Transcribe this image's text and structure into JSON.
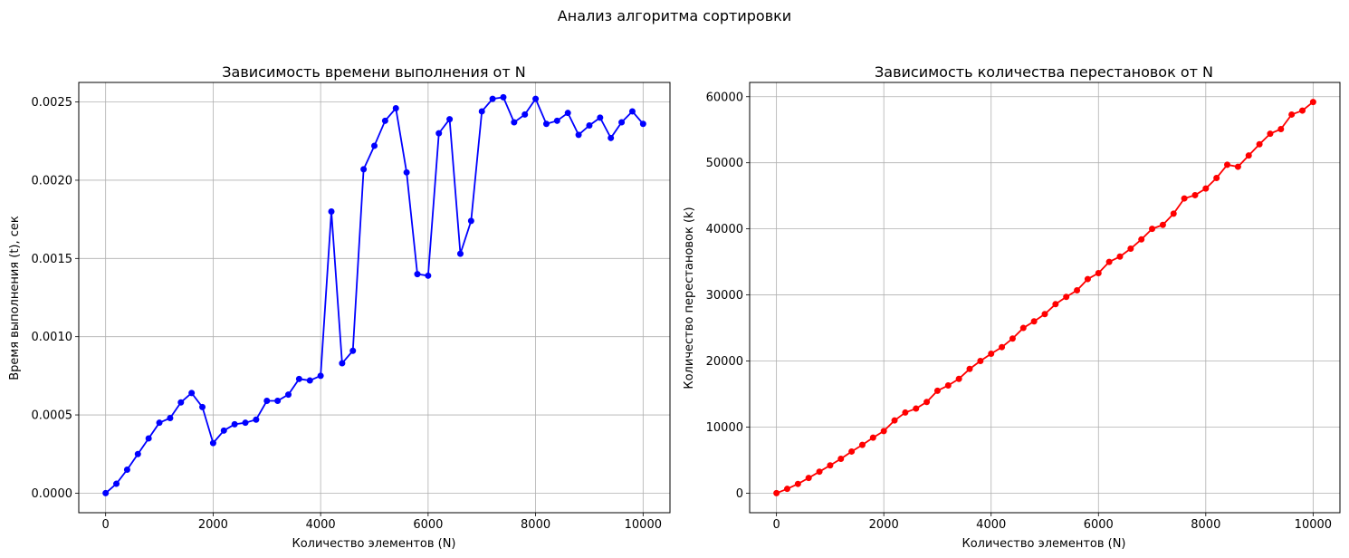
{
  "suptitle": "Анализ алгоритма сортировки",
  "colors": {
    "left_series": "#0000ff",
    "right_series": "#ff0000",
    "grid": "#b0b0b0",
    "axis": "#000000"
  },
  "chart_data": [
    {
      "type": "line",
      "title": "Зависимость времени выполнения от N",
      "xlabel": "Количество элементов (N)",
      "ylabel": "Время выполнения (t), сек",
      "xlim": [
        -500,
        10500
      ],
      "ylim": [
        -0.000125,
        0.002625
      ],
      "grid": true,
      "marker": "circle",
      "xticks": [
        0,
        2000,
        4000,
        6000,
        8000,
        10000
      ],
      "xtick_labels": [
        "0",
        "2000",
        "4000",
        "6000",
        "8000",
        "10000"
      ],
      "yticks": [
        0.0,
        0.0005,
        0.001,
        0.0015,
        0.002,
        0.0025
      ],
      "ytick_labels": [
        "0.0000",
        "0.0005",
        "0.0010",
        "0.0015",
        "0.0020",
        "0.0025"
      ],
      "x": [
        0,
        200,
        400,
        600,
        800,
        1000,
        1200,
        1400,
        1600,
        1800,
        2000,
        2200,
        2400,
        2600,
        2800,
        3000,
        3200,
        3400,
        3600,
        3800,
        4000,
        4200,
        4400,
        4600,
        4800,
        5000,
        5200,
        5400,
        5600,
        5800,
        6000,
        6200,
        6400,
        6600,
        6800,
        7000,
        7200,
        7400,
        7600,
        7800,
        8000,
        8200,
        8400,
        8600,
        8800,
        9000,
        9200,
        9400,
        9600,
        9800,
        10000
      ],
      "y": [
        0.0,
        6e-05,
        0.00015,
        0.00025,
        0.00035,
        0.00045,
        0.00048,
        0.00058,
        0.00064,
        0.00055,
        0.00032,
        0.0004,
        0.00044,
        0.00045,
        0.00047,
        0.00059,
        0.00059,
        0.00063,
        0.00073,
        0.00072,
        0.00075,
        0.0018,
        0.00083,
        0.00091,
        0.00207,
        0.00222,
        0.00238,
        0.00246,
        0.00205,
        0.0014,
        0.00139,
        0.0023,
        0.00239,
        0.00153,
        0.00174,
        0.00244,
        0.00252,
        0.00253,
        0.00237,
        0.00242,
        0.00252,
        0.00236,
        0.00238,
        0.00243,
        0.00229,
        0.00235,
        0.0024,
        0.00227,
        0.00237,
        0.00244,
        0.00236
      ]
    },
    {
      "type": "line",
      "title": "Зависимость количества перестановок от N",
      "xlabel": "Количество элементов (N)",
      "ylabel": "Количество перестановок (k)",
      "xlim": [
        -500,
        10500
      ],
      "ylim": [
        -2960,
        62160
      ],
      "grid": true,
      "marker": "circle",
      "xticks": [
        0,
        2000,
        4000,
        6000,
        8000,
        10000
      ],
      "xtick_labels": [
        "0",
        "2000",
        "4000",
        "6000",
        "8000",
        "10000"
      ],
      "yticks": [
        0,
        10000,
        20000,
        30000,
        40000,
        50000,
        60000
      ],
      "ytick_labels": [
        "0",
        "10000",
        "20000",
        "30000",
        "40000",
        "50000",
        "60000"
      ],
      "x": [
        0,
        200,
        400,
        600,
        800,
        1000,
        1200,
        1400,
        1600,
        1800,
        2000,
        2200,
        2400,
        2600,
        2800,
        3000,
        3200,
        3400,
        3600,
        3800,
        4000,
        4200,
        4400,
        4600,
        4800,
        5000,
        5200,
        5400,
        5600,
        5800,
        6000,
        6200,
        6400,
        6600,
        6800,
        7000,
        7200,
        7400,
        7600,
        7800,
        8000,
        8200,
        8400,
        8600,
        8800,
        9000,
        9200,
        9400,
        9600,
        9800,
        10000
      ],
      "y": [
        0,
        650,
        1400,
        2300,
        3250,
        4200,
        5200,
        6300,
        7300,
        8400,
        9400,
        11000,
        12200,
        12800,
        13800,
        15500,
        16300,
        17300,
        18800,
        20000,
        21100,
        22100,
        23400,
        25000,
        26000,
        27100,
        28600,
        29700,
        30700,
        32400,
        33300,
        35000,
        35800,
        37000,
        38400,
        40000,
        40600,
        42300,
        44600,
        45100,
        46100,
        47700,
        49700,
        49400,
        51100,
        52800,
        54400,
        55100,
        57300,
        57900,
        59200
      ]
    }
  ]
}
